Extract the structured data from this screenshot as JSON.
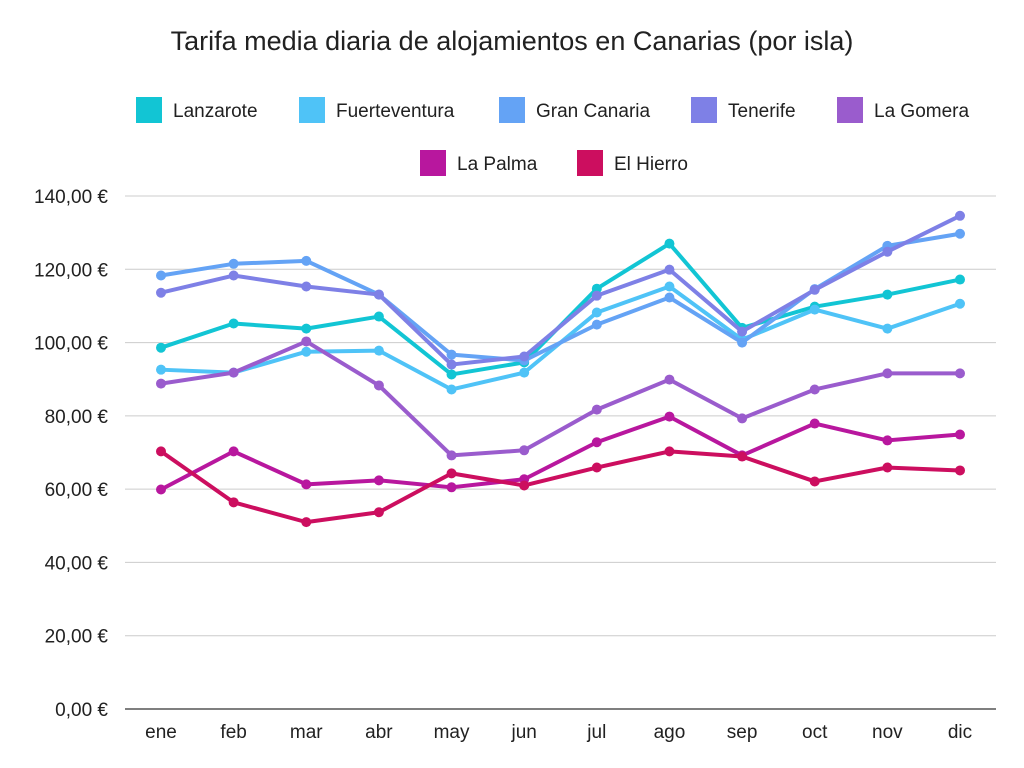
{
  "chart_data": {
    "type": "line",
    "title": "Tarifa media diaria de alojamientos en Canarias (por isla)",
    "xlabel": "",
    "ylabel": "",
    "categories": [
      "ene",
      "feb",
      "mar",
      "abr",
      "may",
      "jun",
      "jul",
      "ago",
      "sep",
      "oct",
      "nov",
      "dic"
    ],
    "ylim": [
      0,
      140
    ],
    "yticks": [
      0,
      20,
      40,
      60,
      80,
      100,
      120,
      140
    ],
    "ytick_labels": [
      "0,00 €",
      "20,00 €",
      "40,00 €",
      "60,00 €",
      "80,00 €",
      "100,00 €",
      "120,00 €",
      "140,00 €"
    ],
    "grid": true,
    "legend_position": "top",
    "series": [
      {
        "name": "Lanzarote",
        "color": "#12c5d4",
        "values": [
          98.6,
          105.2,
          103.8,
          107.1,
          91.3,
          94.6,
          114.7,
          127.0,
          104.0,
          109.8,
          113.1,
          117.2
        ]
      },
      {
        "name": "Fuerteventura",
        "color": "#4fc3f7",
        "values": [
          92.6,
          91.8,
          97.5,
          97.8,
          87.2,
          91.8,
          108.2,
          115.3,
          100.8,
          109.0,
          103.8,
          110.6
        ]
      },
      {
        "name": "Gran Canaria",
        "color": "#64a3f5",
        "values": [
          118.3,
          121.5,
          122.3,
          113.1,
          96.7,
          95.1,
          104.9,
          112.3,
          100.0,
          114.6,
          126.4,
          129.7
        ]
      },
      {
        "name": "Tenerife",
        "color": "#7e80e6",
        "values": [
          113.6,
          118.3,
          115.3,
          113.1,
          94.0,
          96.2,
          112.8,
          119.9,
          103.0,
          114.4,
          124.8,
          134.6
        ]
      },
      {
        "name": "La Gomera",
        "color": "#9a5ccd",
        "values": [
          88.8,
          91.8,
          100.3,
          88.3,
          69.2,
          70.6,
          81.7,
          89.9,
          79.3,
          87.2,
          91.6,
          91.6
        ]
      },
      {
        "name": "La Palma",
        "color": "#b8179e",
        "values": [
          59.9,
          70.3,
          61.3,
          62.4,
          60.5,
          62.7,
          72.8,
          79.8,
          69.2,
          77.9,
          73.3,
          74.9
        ]
      },
      {
        "name": "El Hierro",
        "color": "#cc0e5f",
        "values": [
          70.3,
          56.4,
          51.0,
          53.7,
          64.3,
          61.0,
          65.9,
          70.3,
          68.9,
          62.1,
          65.9,
          65.1
        ]
      }
    ]
  }
}
